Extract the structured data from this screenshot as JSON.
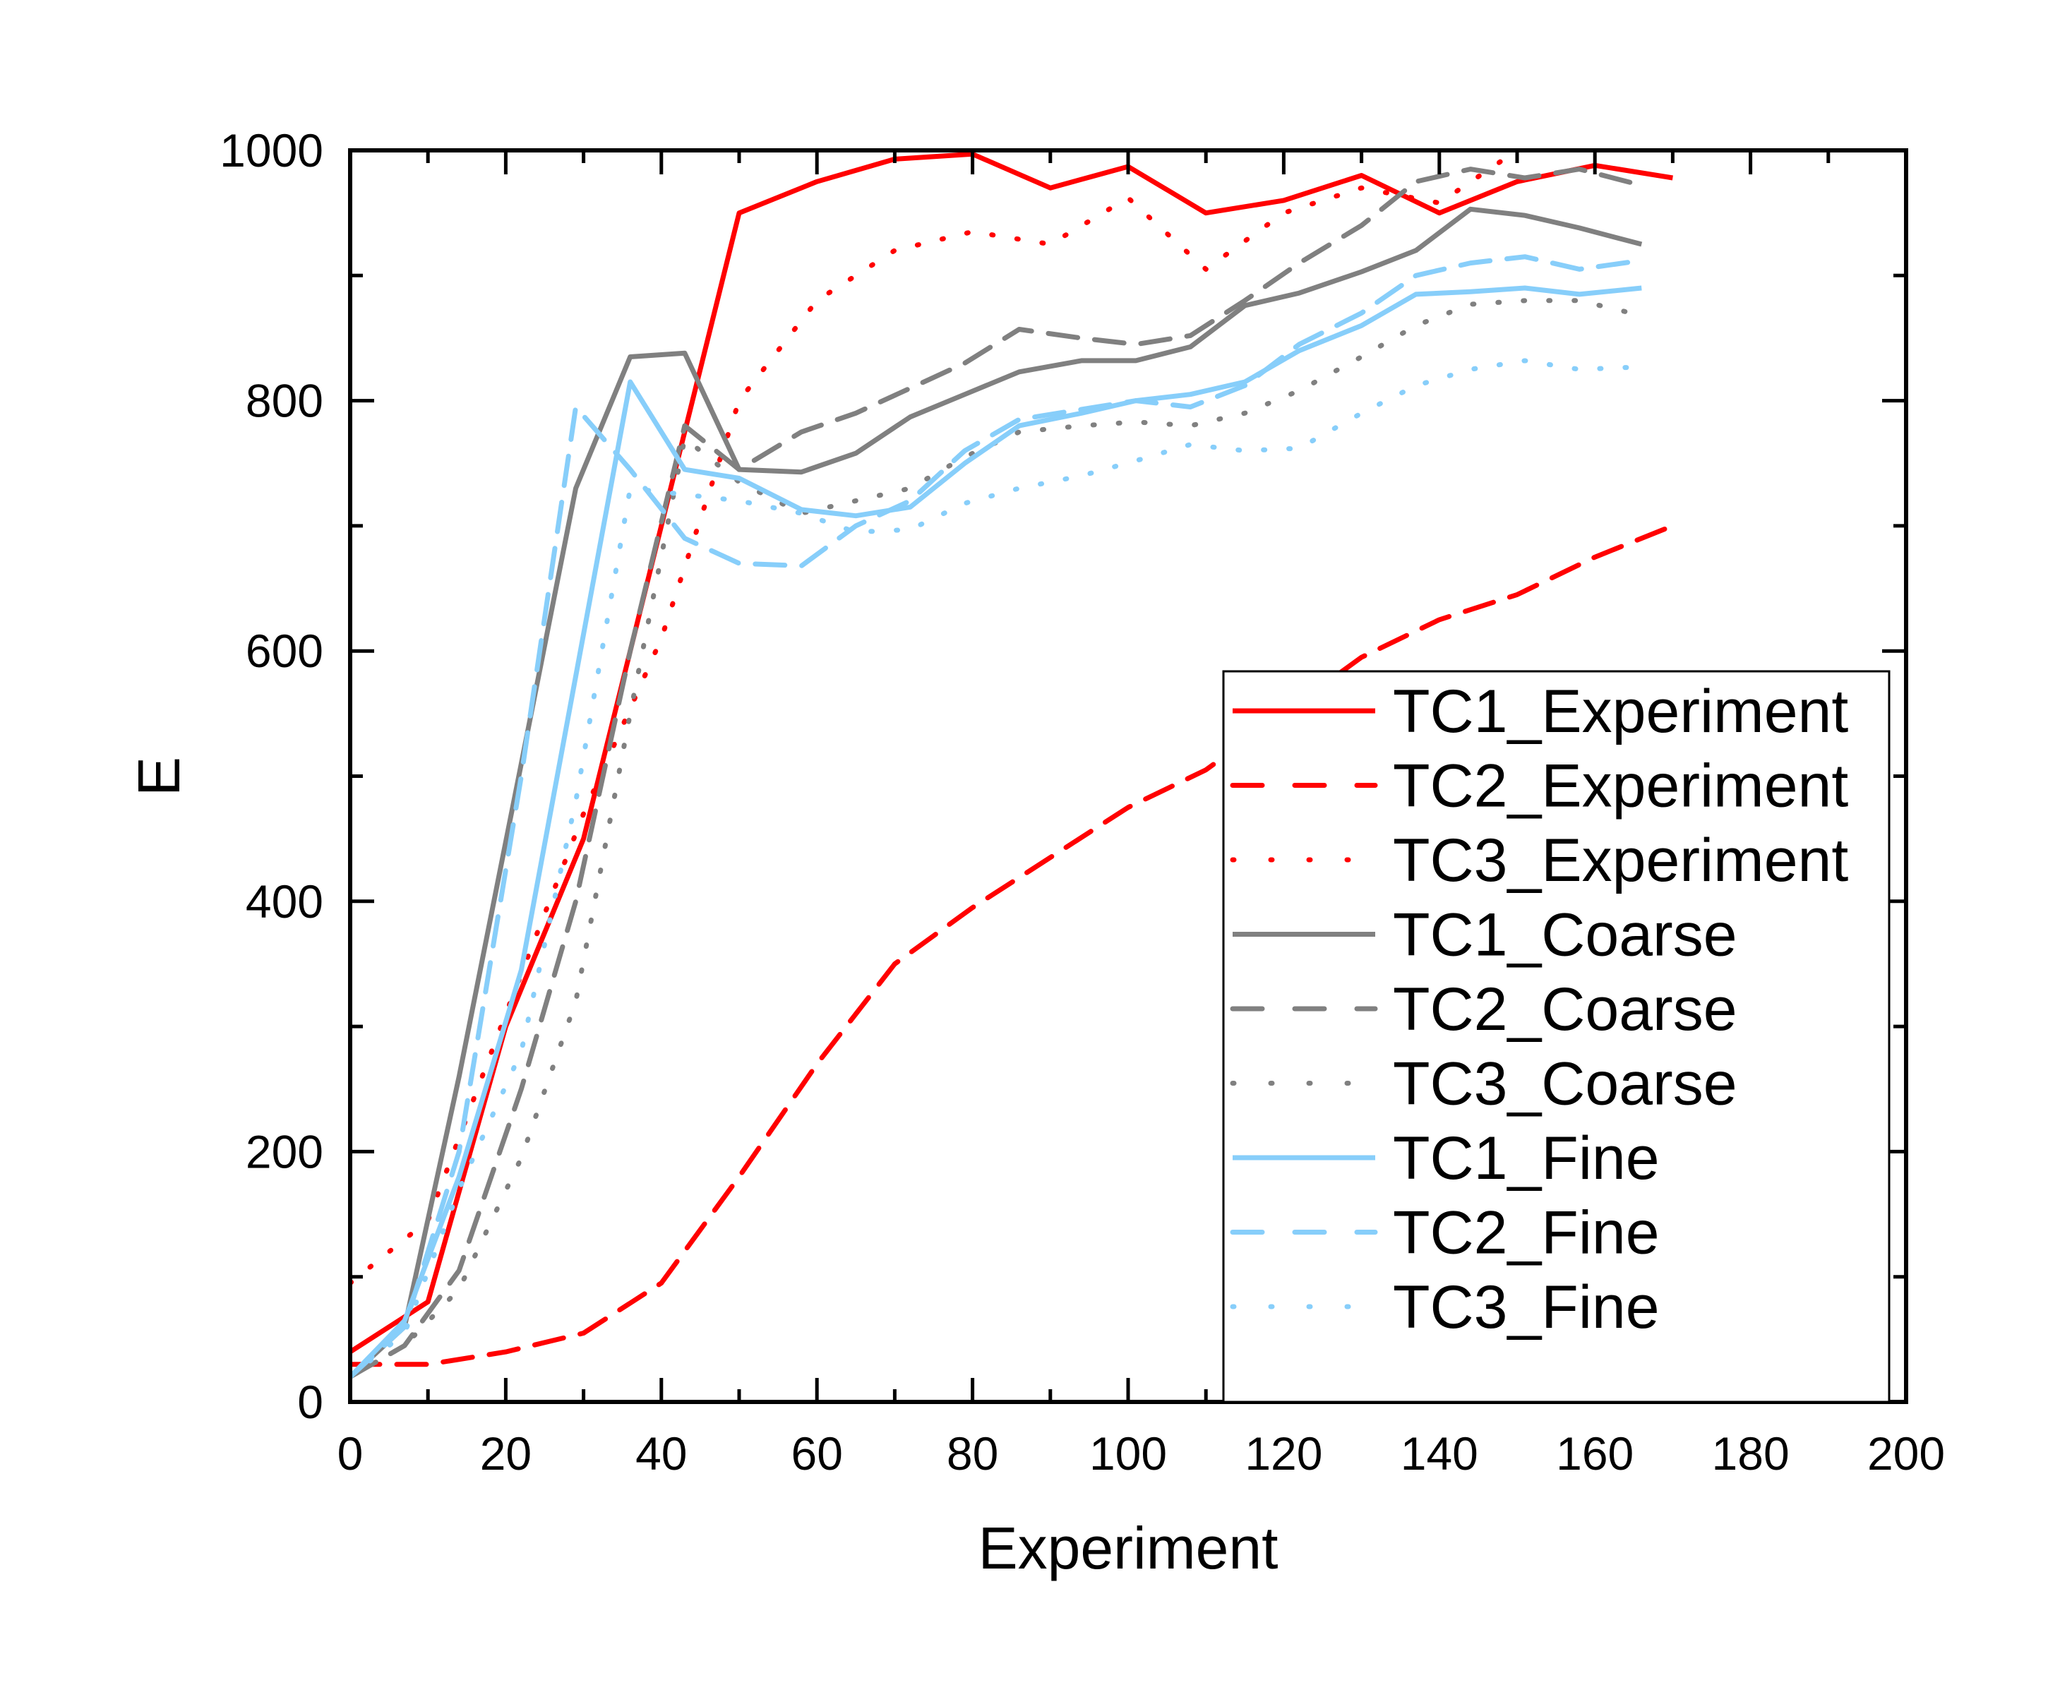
{
  "chart_data": {
    "type": "line",
    "title": "",
    "xlabel": "Experiment",
    "ylabel": "E",
    "xlim": [
      0,
      200
    ],
    "ylim": [
      0,
      1000
    ],
    "xticks": [
      0,
      20,
      40,
      60,
      80,
      100,
      120,
      140,
      160,
      180,
      200
    ],
    "yticks": [
      0,
      200,
      400,
      600,
      800,
      1000
    ],
    "grid": false,
    "legend_position": "bottom-right",
    "series": [
      {
        "name": "TC1_Experiment",
        "color": "#ff0000",
        "style": "solid",
        "x": [
          0,
          10,
          20,
          30,
          40,
          50,
          60,
          70,
          80,
          90,
          100,
          110,
          120,
          130,
          140,
          150,
          160,
          170
        ],
        "y": [
          40,
          80,
          300,
          450,
          700,
          950,
          975,
          993,
          997,
          970,
          987,
          950,
          960,
          980,
          950,
          975,
          988,
          978
        ]
      },
      {
        "name": "TC2_Experiment",
        "color": "#ff0000",
        "style": "dashed",
        "x": [
          0,
          10,
          20,
          30,
          40,
          50,
          60,
          70,
          80,
          90,
          100,
          110,
          120,
          130,
          140,
          150,
          160,
          170
        ],
        "y": [
          30,
          30,
          40,
          55,
          95,
          180,
          270,
          350,
          395,
          435,
          475,
          505,
          550,
          595,
          625,
          645,
          675,
          700
        ]
      },
      {
        "name": "TC3_Experiment",
        "color": "#ff0000",
        "style": "dotted",
        "x": [
          0,
          10,
          20,
          30,
          40,
          50,
          60,
          70,
          80,
          90,
          100,
          110,
          120,
          130,
          140,
          150
        ],
        "y": [
          95,
          145,
          310,
          470,
          610,
          800,
          880,
          920,
          935,
          925,
          962,
          905,
          950,
          970,
          958,
          1000
        ]
      },
      {
        "name": "TC1_Coarse",
        "color": "#808080",
        "style": "solid",
        "x": [
          0,
          7,
          14,
          22,
          29,
          36,
          43,
          50,
          58,
          65,
          72,
          79,
          86,
          94,
          101,
          108,
          115,
          122,
          130,
          137,
          144,
          151,
          158,
          166
        ],
        "y": [
          20,
          60,
          260,
          510,
          730,
          835,
          838,
          745,
          743,
          758,
          787,
          805,
          823,
          832,
          832,
          843,
          876,
          886,
          903,
          920,
          953,
          948,
          938,
          925
        ]
      },
      {
        "name": "TC2_Coarse",
        "color": "#808080",
        "style": "dashed",
        "x": [
          0,
          7,
          14,
          22,
          29,
          36,
          43,
          50,
          58,
          65,
          72,
          79,
          86,
          94,
          101,
          108,
          115,
          122,
          130,
          137,
          144,
          151,
          158,
          166
        ],
        "y": [
          20,
          45,
          105,
          250,
          400,
          600,
          780,
          745,
          775,
          790,
          810,
          830,
          857,
          850,
          845,
          852,
          880,
          910,
          940,
          975,
          985,
          978,
          985,
          972
        ]
      },
      {
        "name": "TC3_Coarse",
        "color": "#808080",
        "style": "dotted",
        "x": [
          0,
          7,
          14,
          22,
          29,
          36,
          43,
          50,
          58,
          65,
          72,
          79,
          86,
          94,
          101,
          108,
          115,
          122,
          130,
          137,
          144,
          151,
          158,
          166
        ],
        "y": [
          20,
          45,
          90,
          195,
          320,
          550,
          770,
          735,
          710,
          720,
          730,
          755,
          775,
          780,
          783,
          780,
          790,
          808,
          835,
          860,
          877,
          880,
          880,
          868
        ]
      },
      {
        "name": "TC1_Fine",
        "color": "#87cefa",
        "style": "solid",
        "x": [
          0,
          7,
          14,
          22,
          29,
          36,
          43,
          50,
          58,
          65,
          72,
          79,
          86,
          94,
          101,
          108,
          115,
          122,
          130,
          137,
          144,
          151,
          158,
          166
        ],
        "y": [
          20,
          65,
          180,
          345,
          580,
          815,
          745,
          738,
          713,
          708,
          715,
          750,
          780,
          790,
          800,
          805,
          815,
          840,
          860,
          885,
          887,
          890,
          885,
          890
        ]
      },
      {
        "name": "TC2_Fine",
        "color": "#87cefa",
        "style": "dashed",
        "x": [
          0,
          7,
          14,
          22,
          29,
          36,
          43,
          50,
          58,
          65,
          72,
          79,
          86,
          94,
          101,
          108,
          115,
          122,
          130,
          137,
          144,
          151,
          158,
          166
        ],
        "y": [
          20,
          60,
          200,
          500,
          795,
          745,
          690,
          670,
          668,
          700,
          720,
          760,
          785,
          793,
          800,
          795,
          812,
          845,
          870,
          900,
          910,
          915,
          905,
          912
        ]
      },
      {
        "name": "TC3_Fine",
        "color": "#87cefa",
        "style": "dotted",
        "x": [
          0,
          7,
          14,
          22,
          29,
          36,
          43,
          50,
          58,
          65,
          72,
          79,
          86,
          94,
          101,
          108,
          115,
          122,
          130,
          137,
          144,
          151,
          158,
          166
        ],
        "y": [
          20,
          55,
          170,
          280,
          480,
          730,
          725,
          720,
          710,
          695,
          697,
          718,
          730,
          740,
          752,
          765,
          760,
          762,
          790,
          812,
          825,
          832,
          825,
          827
        ]
      }
    ]
  }
}
